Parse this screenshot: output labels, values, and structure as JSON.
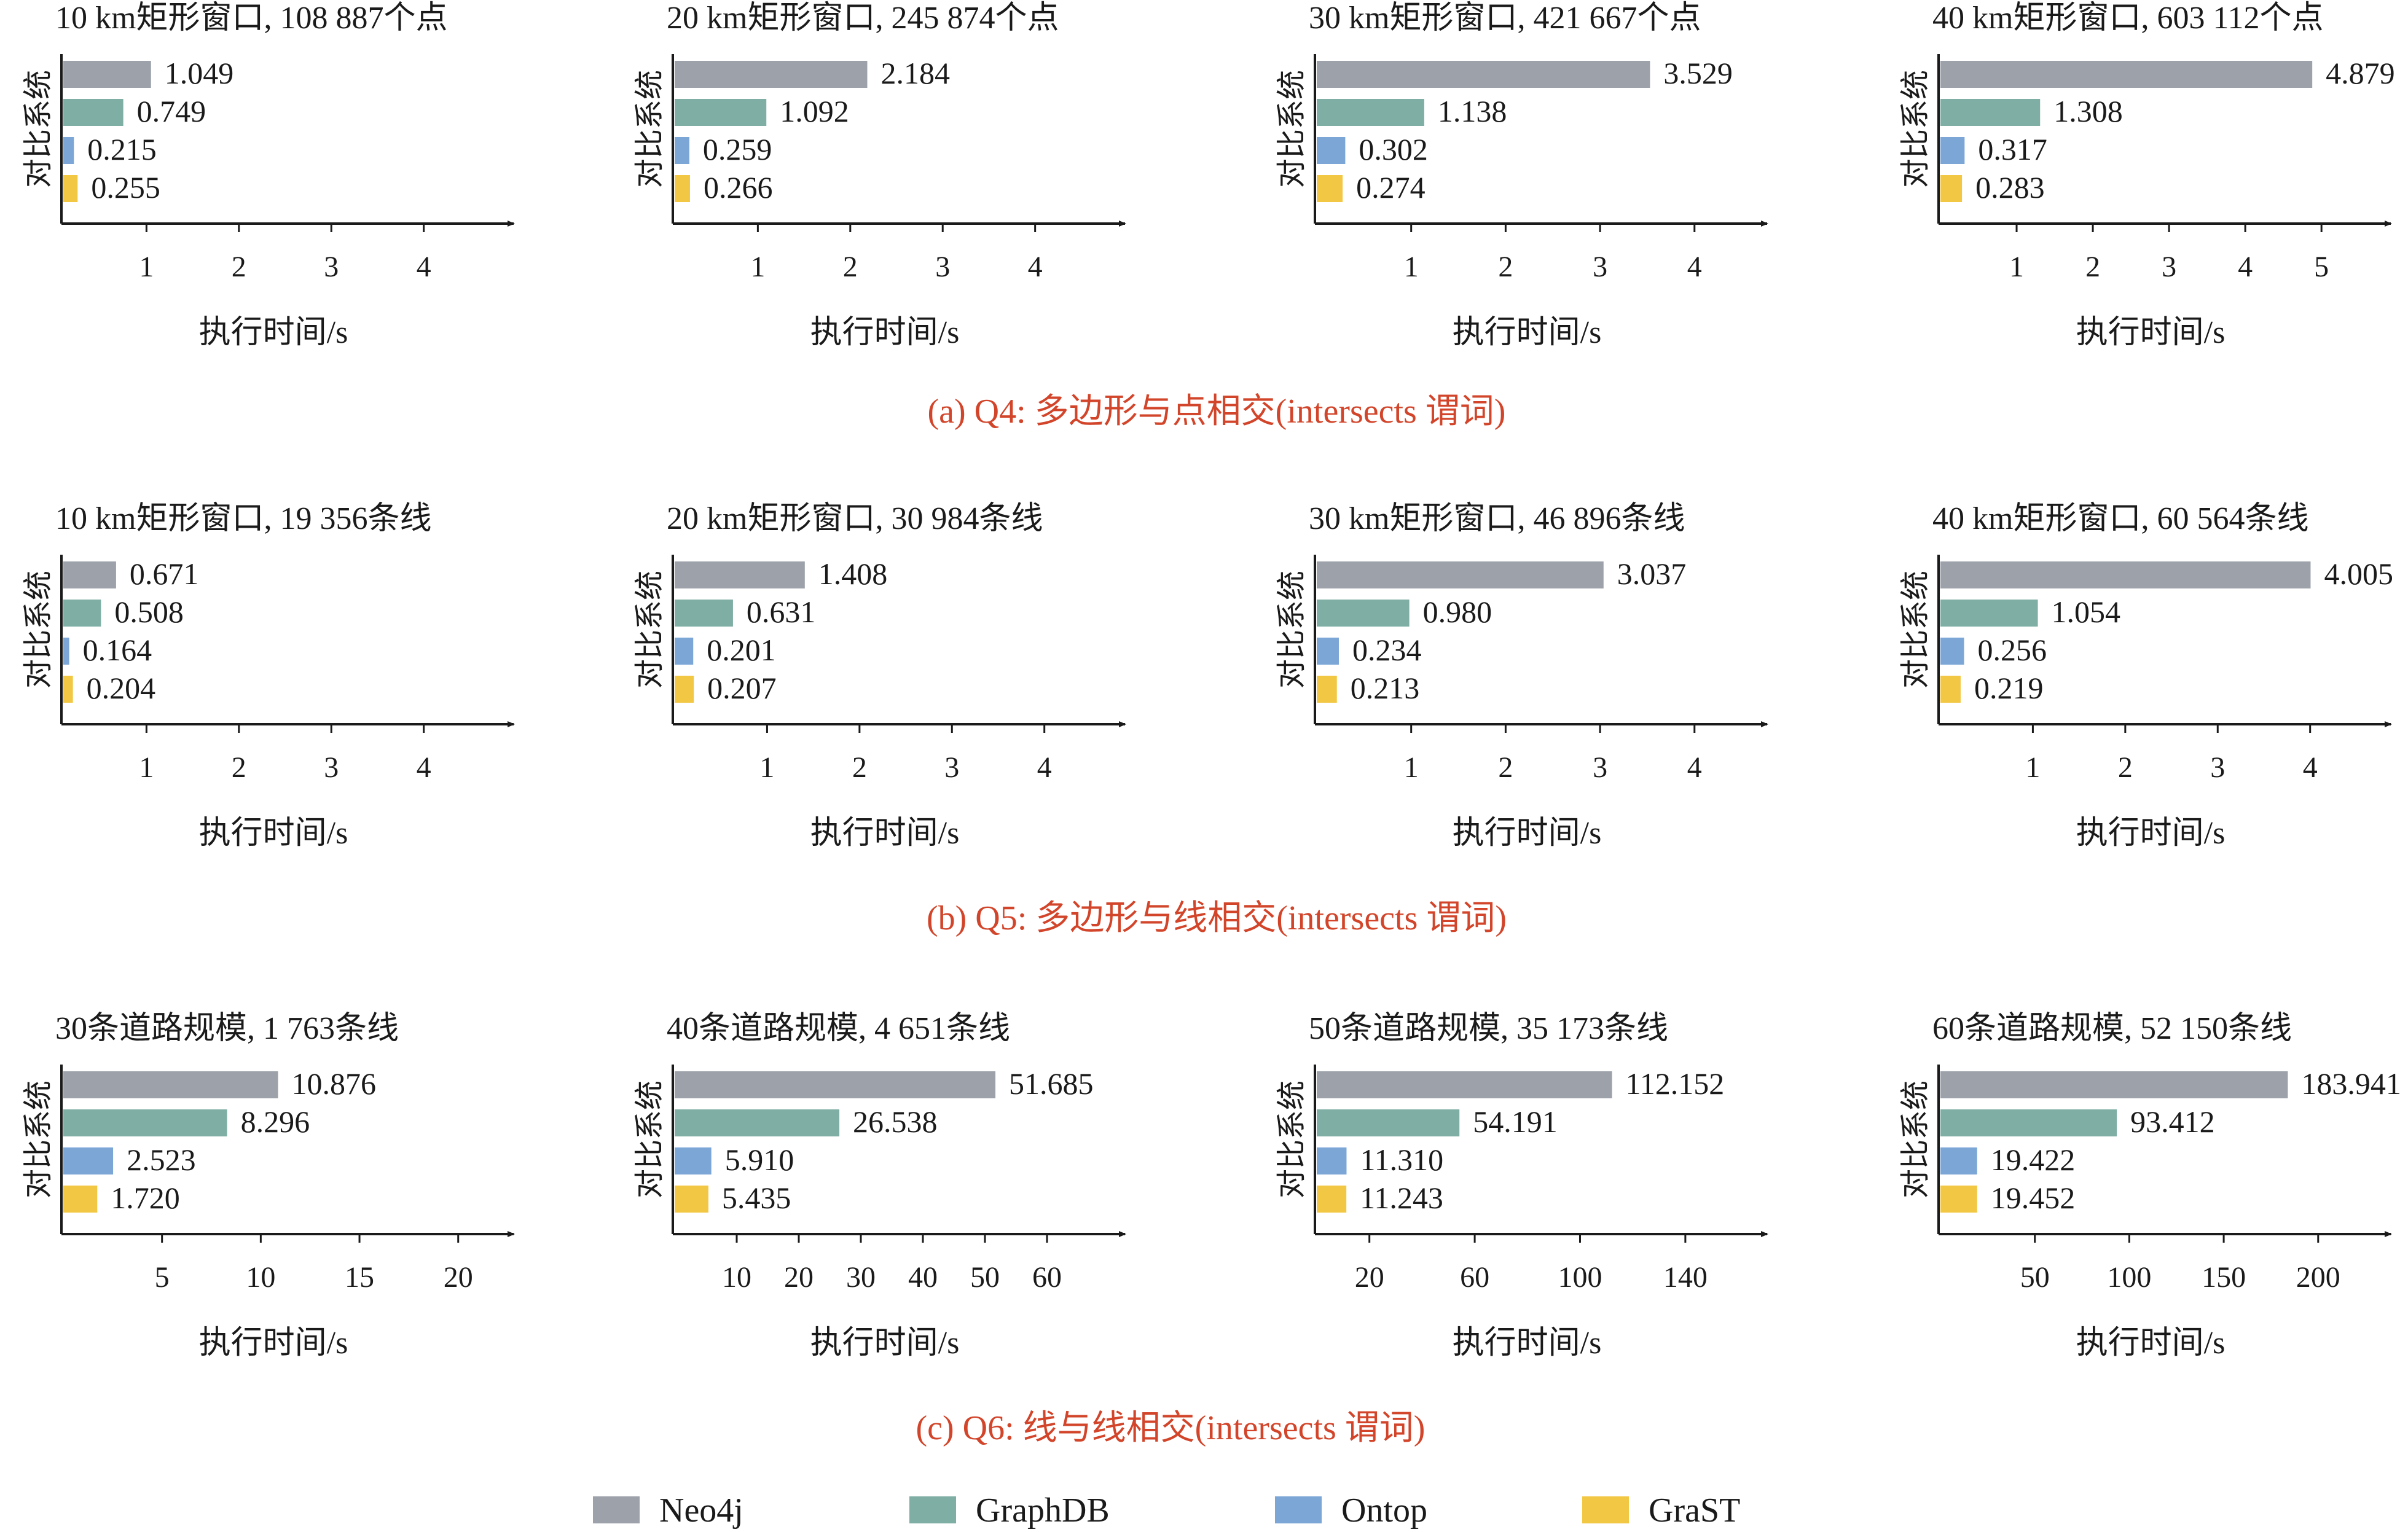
{
  "colors": {
    "Neo4j": "#9ca1aa",
    "GraphDB": "#7faea4",
    "Ontop": "#7ba6d6",
    "GraST": "#f2c744",
    "caption": "#d2452a",
    "axis": "#1a1a1a"
  },
  "legend": [
    {
      "name": "Neo4j",
      "color": "#9ca1aa"
    },
    {
      "name": "GraphDB",
      "color": "#7faea4"
    },
    {
      "name": "Ontop",
      "color": "#7ba6d6"
    },
    {
      "name": "GraST",
      "color": "#f2c744"
    }
  ],
  "captions": [
    "(a) Q4: 多边形与点相交(intersects 谓词)",
    "(b) Q5: 多边形与线相交(intersects 谓词)",
    "(c) Q6: 线与线相交(intersects 谓词)"
  ],
  "chart_data": [
    {
      "type": "bar",
      "title": "10 km矩形窗口, 108 887个点",
      "ylabel": "对比系统",
      "xlabel": "执行时间/s",
      "categories": [
        "Neo4j",
        "GraphDB",
        "Ontop",
        "GraST"
      ],
      "values": [
        1.049,
        0.749,
        0.215,
        0.255
      ],
      "value_labels": [
        "1.049",
        "0.749",
        "0.215",
        "0.255"
      ],
      "xlim": [
        0.1,
        4.8
      ],
      "xticks": [
        1,
        2,
        3,
        4
      ]
    },
    {
      "type": "bar",
      "title": "20 km矩形窗口, 245 874个点",
      "ylabel": "对比系统",
      "xlabel": "执行时间/s",
      "categories": [
        "Neo4j",
        "GraphDB",
        "Ontop",
        "GraST"
      ],
      "values": [
        2.184,
        1.092,
        0.259,
        0.266
      ],
      "value_labels": [
        "2.184",
        "1.092",
        "0.259",
        "0.266"
      ],
      "xlim": [
        0.1,
        4.8
      ],
      "xticks": [
        1,
        2,
        3,
        4
      ]
    },
    {
      "type": "bar",
      "title": "30 km矩形窗口, 421 667个点",
      "ylabel": "对比系统",
      "xlabel": "执行时间/s",
      "categories": [
        "Neo4j",
        "GraphDB",
        "Ontop",
        "GraST"
      ],
      "values": [
        3.529,
        1.138,
        0.302,
        0.274
      ],
      "value_labels": [
        "3.529",
        "1.138",
        "0.302",
        "0.274"
      ],
      "xlim": [
        0.0,
        4.6
      ],
      "xticks": [
        1,
        2,
        3,
        4
      ]
    },
    {
      "type": "bar",
      "title": "40 km矩形窗口, 603 112个点",
      "ylabel": "对比系统",
      "xlabel": "执行时间/s",
      "categories": [
        "Neo4j",
        "GraphDB",
        "Ontop",
        "GraST"
      ],
      "values": [
        4.879,
        1.308,
        0.317,
        0.283
      ],
      "value_labels": [
        "4.879",
        "1.308",
        "0.317",
        "0.283"
      ],
      "xlim": [
        0.0,
        5.7
      ],
      "xticks": [
        1,
        2,
        3,
        4,
        5
      ]
    },
    {
      "type": "bar",
      "title": "10 km矩形窗口, 19 356条线",
      "ylabel": "对比系统",
      "xlabel": "执行时间/s",
      "categories": [
        "Neo4j",
        "GraphDB",
        "Ontop",
        "GraST"
      ],
      "values": [
        0.671,
        0.508,
        0.164,
        0.204
      ],
      "value_labels": [
        "0.671",
        "0.508",
        "0.164",
        "0.204"
      ],
      "xlim": [
        0.1,
        4.8
      ],
      "xticks": [
        1,
        2,
        3,
        4
      ]
    },
    {
      "type": "bar",
      "title": "20 km矩形窗口, 30 984条线",
      "ylabel": "对比系统",
      "xlabel": "执行时间/s",
      "categories": [
        "Neo4j",
        "GraphDB",
        "Ontop",
        "GraST"
      ],
      "values": [
        1.408,
        0.631,
        0.201,
        0.207
      ],
      "value_labels": [
        "1.408",
        "0.631",
        "0.201",
        "0.207"
      ],
      "xlim": [
        0.0,
        4.7
      ],
      "xticks": [
        1,
        2,
        3,
        4
      ]
    },
    {
      "type": "bar",
      "title": "30 km矩形窗口, 46 896条线",
      "ylabel": "对比系统",
      "xlabel": "执行时间/s",
      "categories": [
        "Neo4j",
        "GraphDB",
        "Ontop",
        "GraST"
      ],
      "values": [
        3.037,
        0.98,
        0.234,
        0.213
      ],
      "value_labels": [
        "3.037",
        "0.980",
        "0.234",
        "0.213"
      ],
      "xlim": [
        0.0,
        4.6
      ],
      "xticks": [
        1,
        2,
        3,
        4
      ]
    },
    {
      "type": "bar",
      "title": "40 km矩形窗口, 60 564条线",
      "ylabel": "对比系统",
      "xlabel": "执行时间/s",
      "categories": [
        "Neo4j",
        "GraphDB",
        "Ontop",
        "GraST"
      ],
      "values": [
        4.005,
        1.054,
        0.256,
        0.219
      ],
      "value_labels": [
        "4.005",
        "1.054",
        "0.256",
        "0.219"
      ],
      "xlim": [
        0.0,
        4.7
      ],
      "xticks": [
        1,
        2,
        3,
        4
      ]
    },
    {
      "type": "bar",
      "title": "30条道路规模, 1 763条线",
      "ylabel": "对比系统",
      "xlabel": "执行时间/s",
      "categories": [
        "Neo4j",
        "GraphDB",
        "Ontop",
        "GraST"
      ],
      "values": [
        10.876,
        8.296,
        2.523,
        1.72
      ],
      "value_labels": [
        "10.876",
        "8.296",
        "2.523",
        "1.720"
      ],
      "xlim": [
        0,
        22
      ],
      "xticks": [
        5,
        10,
        15,
        20
      ]
    },
    {
      "type": "bar",
      "title": "40条道路规模, 4 651条线",
      "ylabel": "对比系统",
      "xlabel": "执行时间/s",
      "categories": [
        "Neo4j",
        "GraphDB",
        "Ontop",
        "GraST"
      ],
      "values": [
        51.685,
        26.538,
        5.91,
        5.435
      ],
      "value_labels": [
        "51.685",
        "26.538",
        "5.910",
        "5.435"
      ],
      "xlim": [
        0,
        70
      ],
      "xticks": [
        10,
        20,
        30,
        40,
        50,
        60
      ]
    },
    {
      "type": "bar",
      "title": "50条道路规模, 35 173条线",
      "ylabel": "对比系统",
      "xlabel": "执行时间/s",
      "categories": [
        "Neo4j",
        "GraphDB",
        "Ontop",
        "GraST"
      ],
      "values": [
        112.152,
        54.191,
        11.31,
        11.243
      ],
      "value_labels": [
        "112.152",
        "54.191",
        "11.310",
        "11.243"
      ],
      "xlim": [
        0,
        165
      ],
      "xticks": [
        20,
        60,
        100,
        140
      ]
    },
    {
      "type": "bar",
      "title": "60条道路规模, 52 150条线",
      "ylabel": "对比系统",
      "xlabel": "执行时间/s",
      "categories": [
        "Neo4j",
        "GraphDB",
        "Ontop",
        "GraST"
      ],
      "values": [
        183.941,
        93.412,
        19.422,
        19.452
      ],
      "value_labels": [
        "183.941",
        "93.412",
        "19.422",
        "19.452"
      ],
      "xlim": [
        0,
        230
      ],
      "xticks": [
        50,
        100,
        150,
        200
      ]
    }
  ]
}
